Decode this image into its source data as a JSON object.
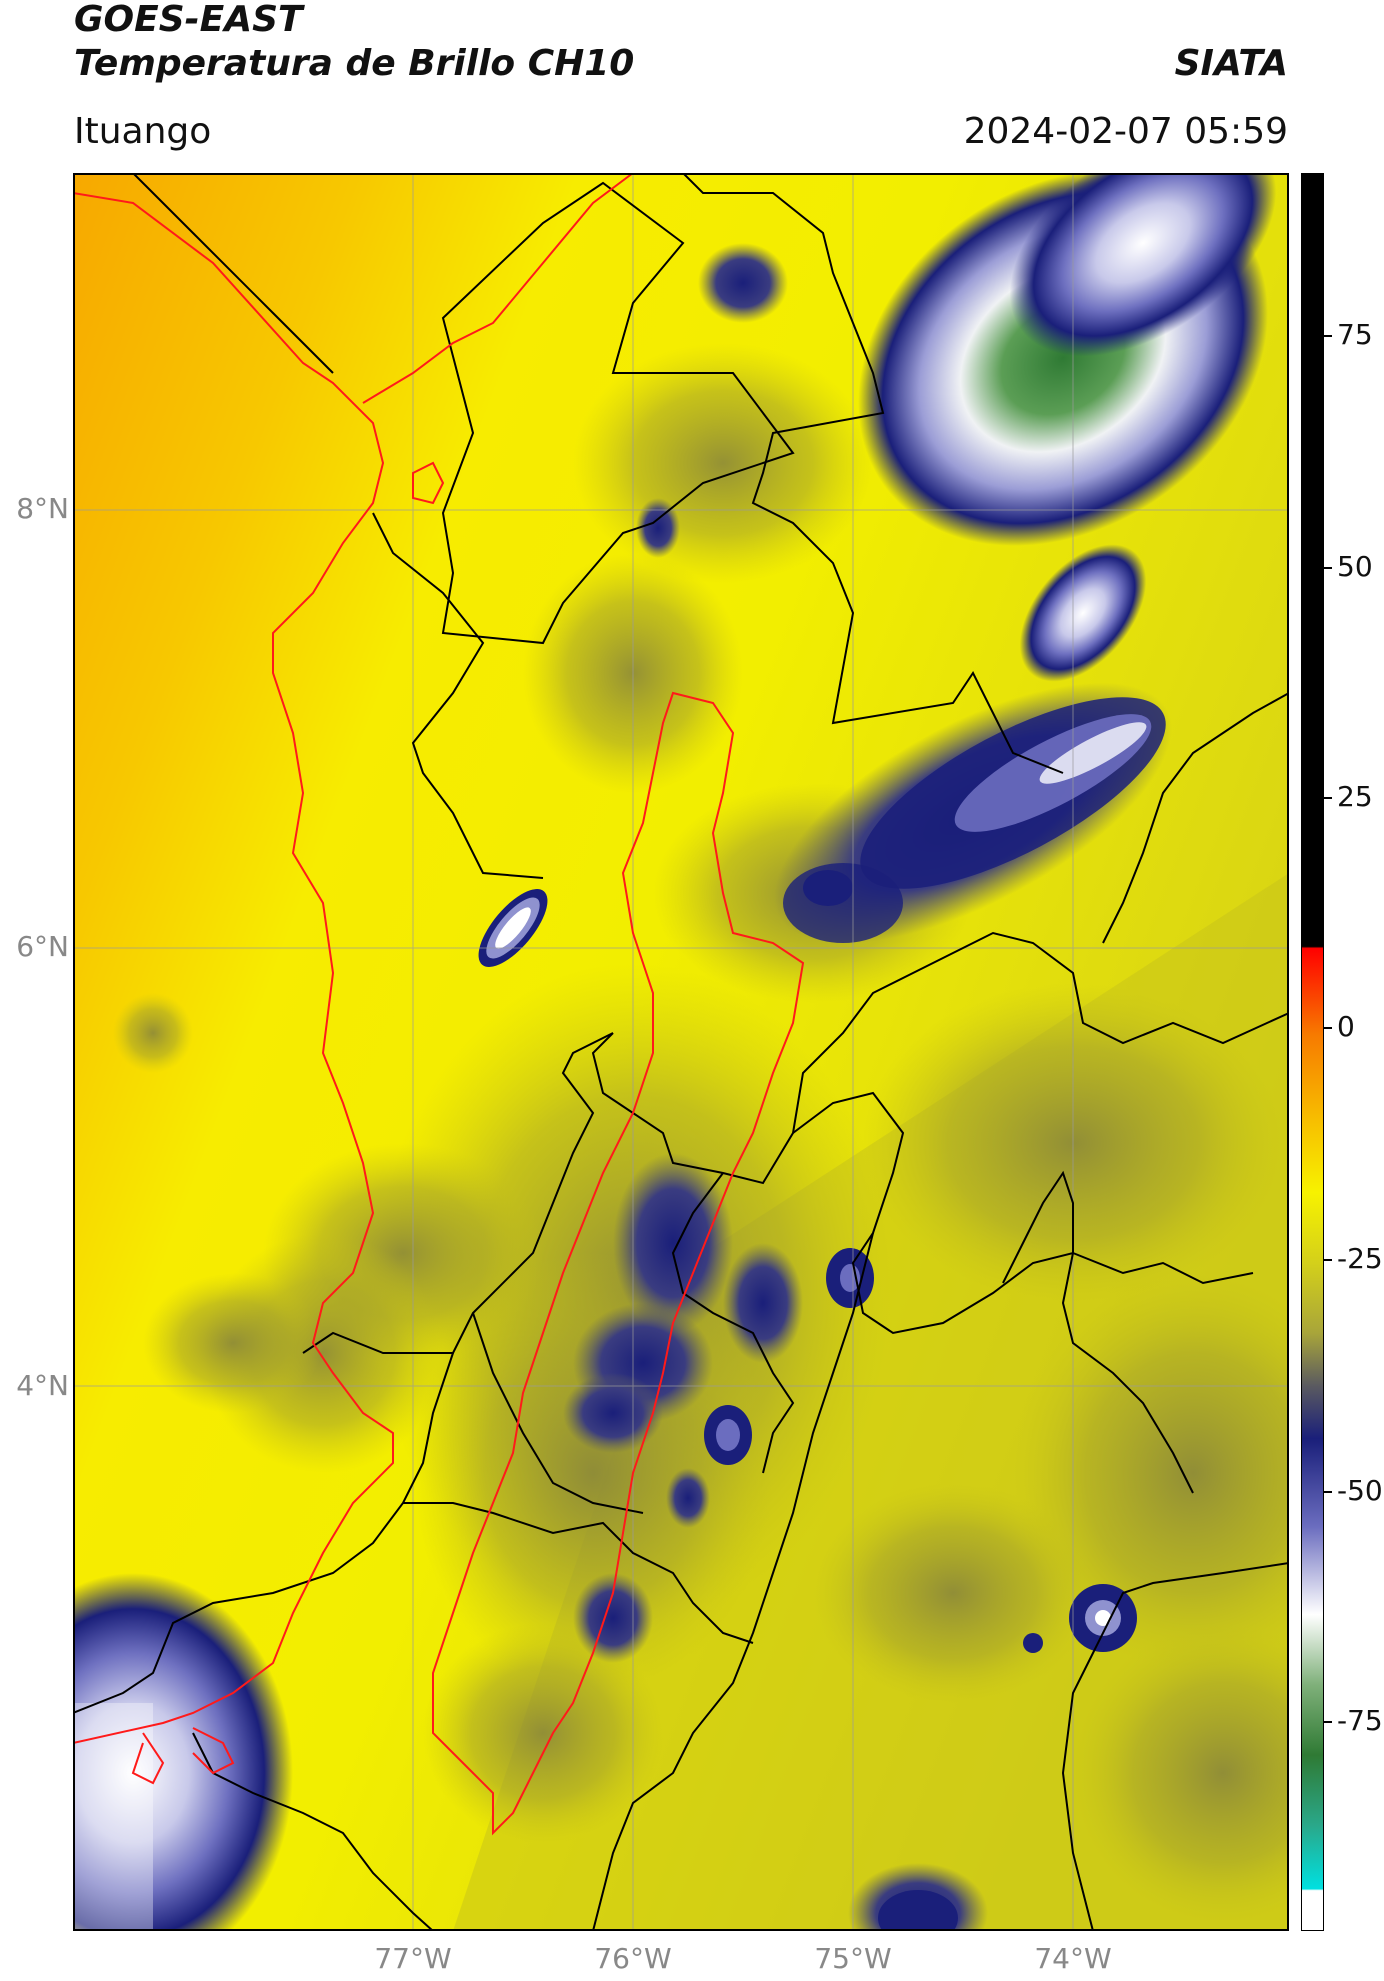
{
  "header": {
    "title_line1": "GOES-EAST",
    "title_line2": "Temperatura de Brillo CH10",
    "brand": "SIATA",
    "region": "Ituango",
    "timestamp": "2024-02-07 05:59"
  },
  "map": {
    "lat_labels": [
      "8°N",
      "6°N",
      "4°N"
    ],
    "lon_labels": [
      "77°W",
      "76°W",
      "75°W",
      "74°W"
    ],
    "colors": {
      "warm_orange": "#f7a800",
      "yellow": "#f7f200",
      "olive": "#b8b51a",
      "dark_olive": "#7d7d3a",
      "navy": "#141a6e",
      "lavender": "#8f92cf",
      "white": "#ffffff",
      "green": "#3e8a3a",
      "border_black": "#000000",
      "border_red": "#ff0000"
    }
  },
  "colorbar": {
    "ticks": [
      "75",
      "50",
      "25",
      "0",
      "-25",
      "-50",
      "-75"
    ],
    "ticks_values": [
      75,
      50,
      25,
      0,
      -25,
      -50,
      -75
    ],
    "range": [
      -95,
      92
    ]
  }
}
